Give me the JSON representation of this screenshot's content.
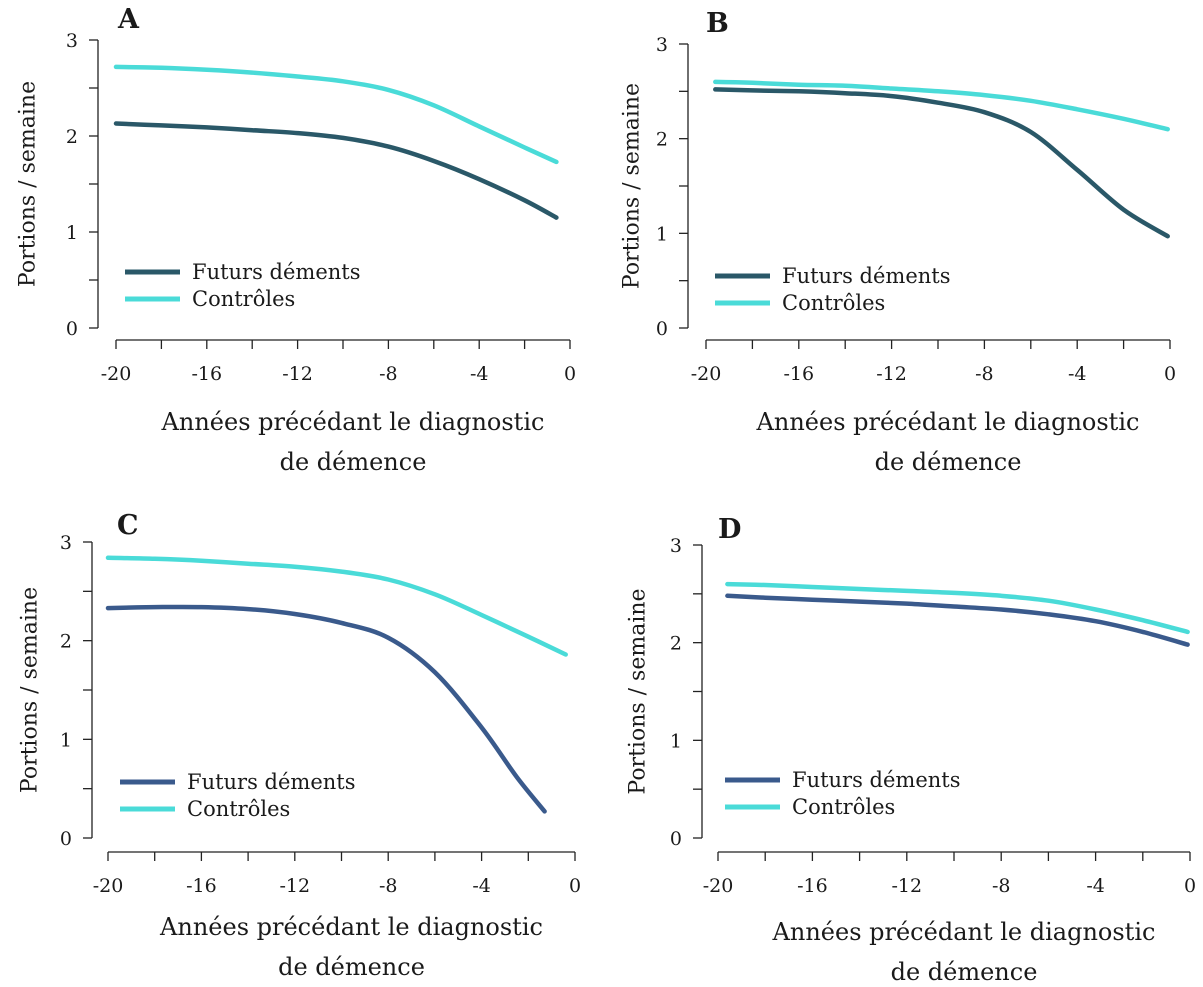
{
  "figure": {
    "colors": {
      "futurs_dark": "#2a5868",
      "futurs_blue": "#3a5a8c",
      "controles": "#4adbd8"
    }
  },
  "chart_data": [
    {
      "panel": "A",
      "type": "line",
      "xlabel_lines": [
        "Années précédant le diagnostic",
        "de démence"
      ],
      "ylabel": "Portions / semaine",
      "xlim": [
        -20,
        0
      ],
      "ylim": [
        0,
        3
      ],
      "xticks": [
        -20,
        -16,
        -12,
        -8,
        -4,
        0
      ],
      "yticks": [
        0,
        1,
        2,
        3
      ],
      "grid": false,
      "legend_position": "bottom-left",
      "series": [
        {
          "name": "Futurs déments",
          "color": "#2a5868",
          "x": [
            -20,
            -18,
            -16,
            -14,
            -12,
            -10,
            -8,
            -6,
            -4,
            -2,
            -0.6
          ],
          "y": [
            2.13,
            2.11,
            2.09,
            2.06,
            2.03,
            1.98,
            1.89,
            1.74,
            1.55,
            1.33,
            1.15
          ]
        },
        {
          "name": "Contrôles",
          "color": "#4adbd8",
          "x": [
            -20,
            -18,
            -16,
            -14,
            -12,
            -10,
            -8,
            -6,
            -4,
            -2,
            -0.6
          ],
          "y": [
            2.72,
            2.71,
            2.69,
            2.66,
            2.62,
            2.57,
            2.48,
            2.32,
            2.1,
            1.88,
            1.73
          ]
        }
      ]
    },
    {
      "panel": "B",
      "type": "line",
      "xlabel_lines": [
        "Années précédant le diagnostic",
        "de démence"
      ],
      "ylabel": "Portions / semaine",
      "xlim": [
        -20,
        0
      ],
      "ylim": [
        0,
        3
      ],
      "xticks": [
        -20,
        -16,
        -12,
        -8,
        -4,
        0
      ],
      "yticks": [
        0,
        1,
        2,
        3
      ],
      "grid": false,
      "legend_position": "bottom-left",
      "series": [
        {
          "name": "Futurs déments",
          "color": "#2a5868",
          "x": [
            -19.6,
            -18,
            -16,
            -14,
            -12,
            -10,
            -8,
            -6,
            -4,
            -2,
            -0.1
          ],
          "y": [
            2.52,
            2.51,
            2.5,
            2.48,
            2.45,
            2.38,
            2.28,
            2.07,
            1.67,
            1.25,
            0.97
          ]
        },
        {
          "name": "Contrôles",
          "color": "#4adbd8",
          "x": [
            -19.6,
            -18,
            -16,
            -14,
            -12,
            -10,
            -8,
            -6,
            -4,
            -2,
            -0.1
          ],
          "y": [
            2.6,
            2.59,
            2.57,
            2.56,
            2.53,
            2.5,
            2.46,
            2.4,
            2.31,
            2.21,
            2.1
          ]
        }
      ]
    },
    {
      "panel": "C",
      "type": "line",
      "xlabel_lines": [
        "Années précédant le diagnostic",
        "de démence"
      ],
      "ylabel": "Portions / semaine",
      "xlim": [
        -20,
        0
      ],
      "ylim": [
        0,
        3
      ],
      "xticks": [
        -20,
        -16,
        -12,
        -8,
        -4,
        0
      ],
      "yticks": [
        0,
        1,
        2,
        3
      ],
      "grid": false,
      "legend_position": "bottom-left",
      "series": [
        {
          "name": "Futurs déments",
          "color": "#3a5a8c",
          "x": [
            -20,
            -18,
            -16,
            -14,
            -12,
            -10,
            -8,
            -6,
            -4,
            -2.5,
            -1.3
          ],
          "y": [
            2.33,
            2.34,
            2.34,
            2.32,
            2.27,
            2.18,
            2.03,
            1.68,
            1.12,
            0.62,
            0.27
          ]
        },
        {
          "name": "Contrôles",
          "color": "#4adbd8",
          "x": [
            -20,
            -18,
            -16,
            -14,
            -12,
            -10,
            -8,
            -6,
            -4,
            -2,
            -0.4
          ],
          "y": [
            2.84,
            2.83,
            2.81,
            2.78,
            2.75,
            2.7,
            2.62,
            2.47,
            2.26,
            2.04,
            1.86
          ]
        }
      ]
    },
    {
      "panel": "D",
      "type": "line",
      "xlabel_lines": [
        "Années précédant le diagnostic",
        "de démence"
      ],
      "ylabel": "Portions / semaine",
      "xlim": [
        -20,
        0
      ],
      "ylim": [
        0,
        3
      ],
      "xticks": [
        -20,
        -16,
        -12,
        -8,
        -4,
        0
      ],
      "yticks": [
        0,
        1,
        2,
        3
      ],
      "grid": false,
      "legend_position": "bottom-left",
      "series": [
        {
          "name": "Futurs déments",
          "color": "#3a5a8c",
          "x": [
            -19.6,
            -18,
            -16,
            -14,
            -12,
            -10,
            -8,
            -6,
            -4,
            -2,
            -0.1
          ],
          "y": [
            2.48,
            2.46,
            2.44,
            2.42,
            2.4,
            2.37,
            2.34,
            2.29,
            2.22,
            2.11,
            1.98
          ]
        },
        {
          "name": "Contrôles",
          "color": "#4adbd8",
          "x": [
            -19.6,
            -18,
            -16,
            -14,
            -12,
            -10,
            -8,
            -6,
            -4,
            -2,
            -0.1
          ],
          "y": [
            2.6,
            2.59,
            2.57,
            2.55,
            2.53,
            2.51,
            2.48,
            2.43,
            2.34,
            2.23,
            2.11
          ]
        }
      ]
    }
  ]
}
